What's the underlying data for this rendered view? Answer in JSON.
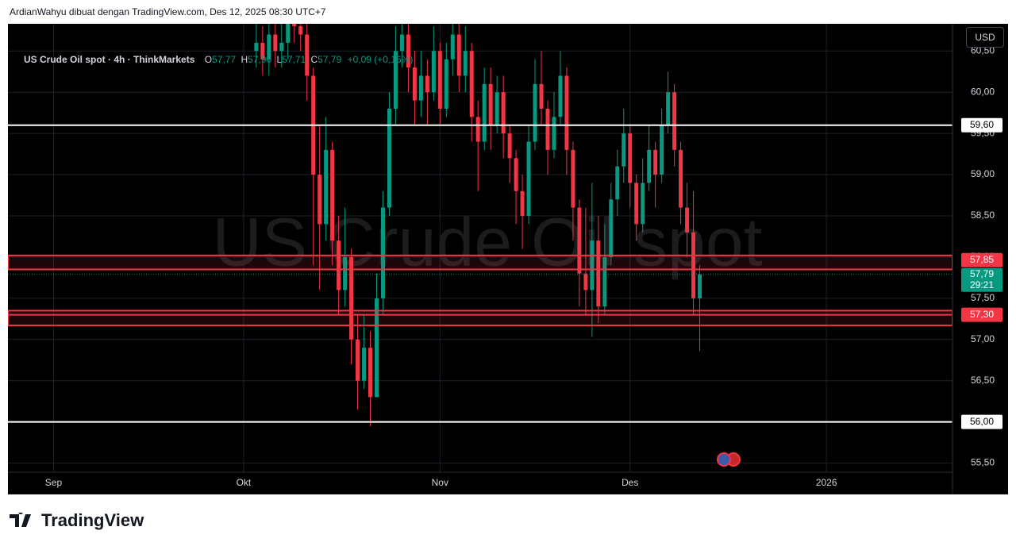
{
  "header": {
    "attribution": "ArdianWahyu dibuat dengan TradingView.com, Des 12, 2025 08:30 UTC+7"
  },
  "legend": {
    "symbol": "US Crude Oil spot · 4h · ThinkMarkets",
    "open_key": "O",
    "open": "57,77",
    "high_key": "H",
    "high": "57,90",
    "low_key": "L",
    "low": "57,71",
    "close_key": "C",
    "close": "57,79",
    "change": "+0,09 (+0,16%)"
  },
  "currency": "USD",
  "footer": {
    "logo": "TradingView"
  },
  "chart_data": {
    "type": "candlestick",
    "watermark": "US Crude Oil spot",
    "up_color": "#089981",
    "down_color": "#f23645",
    "x": [
      32,
      33,
      34,
      35,
      36,
      37,
      38,
      39,
      40,
      41,
      42,
      43,
      44,
      45,
      46,
      47,
      48,
      49,
      50,
      51,
      52,
      53,
      54,
      55,
      56,
      57,
      58,
      59,
      60,
      61,
      62,
      63,
      64,
      65,
      66,
      67,
      68,
      69,
      70,
      71,
      72,
      73,
      74,
      75,
      76,
      77,
      78,
      79,
      80,
      81,
      82,
      83,
      84,
      85,
      86,
      87,
      88,
      89,
      90,
      91,
      92,
      93,
      94,
      95,
      96,
      97,
      98,
      99,
      100,
      101,
      102
    ],
    "open": [
      60.5,
      60.6,
      60.4,
      60.7,
      60.5,
      60.6,
      60.9,
      60.8,
      60.7,
      60.2,
      59.0,
      58.4,
      59.3,
      58.2,
      57.6,
      58.0,
      57.0,
      56.5,
      56.9,
      56.3,
      57.5,
      58.6,
      59.8,
      60.5,
      60.7,
      60.3,
      59.9,
      60.2,
      60.0,
      60.5,
      59.8,
      60.4,
      60.7,
      60.2,
      60.5,
      59.7,
      59.4,
      60.1,
      59.6,
      60.0,
      59.5,
      59.2,
      58.8,
      58.5,
      59.4,
      60.1,
      59.8,
      59.3,
      59.7,
      60.2,
      59.3,
      58.6,
      57.8,
      57.6,
      58.2,
      57.4,
      58.0,
      58.7,
      59.1,
      59.5,
      58.9,
      58.4,
      58.9,
      59.3,
      59.0,
      59.6,
      60.0,
      59.3,
      58.6,
      58.3,
      57.5
    ],
    "high": [
      60.9,
      60.8,
      60.9,
      60.9,
      60.9,
      61.1,
      61.1,
      61.0,
      60.9,
      60.3,
      59.6,
      59.7,
      59.4,
      58.5,
      58.6,
      58.1,
      57.3,
      57.3,
      57.1,
      57.8,
      58.8,
      60.0,
      60.8,
      61.0,
      60.9,
      60.5,
      60.5,
      60.4,
      60.8,
      60.6,
      60.6,
      61.0,
      60.9,
      60.8,
      60.6,
      59.9,
      60.3,
      60.3,
      60.2,
      60.2,
      59.6,
      59.3,
      59.0,
      59.6,
      60.4,
      60.5,
      59.9,
      60.0,
      60.5,
      60.3,
      59.4,
      58.7,
      58.6,
      58.9,
      58.5,
      58.4,
      58.9,
      59.3,
      59.8,
      59.6,
      59.0,
      59.2,
      59.6,
      59.4,
      59.8,
      60.25,
      60.1,
      59.4,
      58.9,
      58.8,
      57.9
    ],
    "low": [
      60.3,
      60.2,
      60.2,
      60.3,
      60.3,
      60.4,
      60.6,
      60.5,
      59.9,
      57.9,
      57.6,
      58.2,
      57.9,
      57.3,
      57.4,
      56.7,
      56.15,
      56.4,
      55.95,
      56.3,
      57.3,
      58.5,
      59.6,
      60.3,
      60.0,
      59.6,
      59.7,
      59.6,
      59.9,
      59.6,
      59.7,
      60.2,
      60.0,
      60.0,
      59.4,
      58.8,
      59.3,
      59.3,
      59.5,
      59.2,
      58.9,
      58.4,
      58.1,
      58.4,
      59.3,
      59.6,
      59.0,
      59.2,
      59.6,
      59.0,
      58.2,
      57.4,
      57.3,
      57.03,
      57.2,
      57.3,
      57.9,
      58.5,
      58.9,
      58.6,
      58.2,
      58.3,
      58.8,
      58.6,
      58.9,
      59.5,
      59.1,
      58.4,
      58.0,
      57.3,
      56.86
    ],
    "close": [
      60.6,
      60.4,
      60.7,
      60.5,
      60.6,
      60.9,
      60.8,
      60.7,
      60.2,
      59.0,
      58.4,
      59.3,
      58.2,
      57.6,
      58.0,
      57.0,
      56.5,
      56.9,
      56.3,
      57.5,
      58.6,
      59.8,
      60.5,
      60.7,
      60.3,
      59.9,
      60.2,
      60.0,
      60.5,
      59.8,
      60.4,
      60.7,
      60.2,
      60.5,
      59.7,
      59.4,
      60.1,
      59.6,
      60.0,
      59.5,
      59.2,
      58.8,
      58.5,
      59.4,
      60.1,
      59.8,
      59.3,
      59.7,
      60.2,
      59.3,
      58.6,
      57.8,
      57.6,
      58.2,
      57.4,
      58.0,
      58.7,
      59.1,
      59.5,
      58.9,
      58.4,
      58.9,
      59.3,
      59.0,
      59.6,
      60.0,
      59.3,
      58.6,
      58.3,
      57.5,
      57.79
    ],
    "xlim": [
      -7.2,
      141.9
    ],
    "xticks": [
      {
        "value": 0,
        "label": "Sep"
      },
      {
        "value": 30,
        "label": "Okt"
      },
      {
        "value": 61,
        "label": "Nov"
      },
      {
        "value": 91,
        "label": "Des"
      },
      {
        "value": 122,
        "label": "2026"
      }
    ],
    "ylim": [
      55.39,
      60.83
    ],
    "yticks": [
      {
        "value": 55.5,
        "label": "55,50"
      },
      {
        "value": 56,
        "label": "56,00"
      },
      {
        "value": 56.5,
        "label": "56,50"
      },
      {
        "value": 57,
        "label": "57,00"
      },
      {
        "value": 57.5,
        "label": "57,50"
      },
      {
        "value": 58,
        "label": "58,00"
      },
      {
        "value": 58.5,
        "label": "58,50"
      },
      {
        "value": 59,
        "label": "59,00"
      },
      {
        "value": 59.5,
        "label": "59,50"
      },
      {
        "value": 60,
        "label": "60,00"
      },
      {
        "value": 60.5,
        "label": "60,50"
      }
    ],
    "grid": true,
    "zones": [
      {
        "low": 57.85,
        "high": 58.02,
        "color": "#f23645"
      },
      {
        "low": 57.17,
        "high": 57.35,
        "color": "#f23645"
      }
    ],
    "levels": [
      {
        "value": 59.6,
        "label": "59,60",
        "color": "#ffffff"
      },
      {
        "value": 57.85,
        "label": "57,85",
        "color": "#f23645"
      },
      {
        "value": 57.3,
        "label": "57,30",
        "color": "#f23645"
      },
      {
        "value": 56,
        "label": "56,00",
        "color": "#ffffff"
      }
    ],
    "last": {
      "value": 57.79,
      "label": "57,79",
      "countdown": "29:21",
      "color": "#089981"
    }
  }
}
